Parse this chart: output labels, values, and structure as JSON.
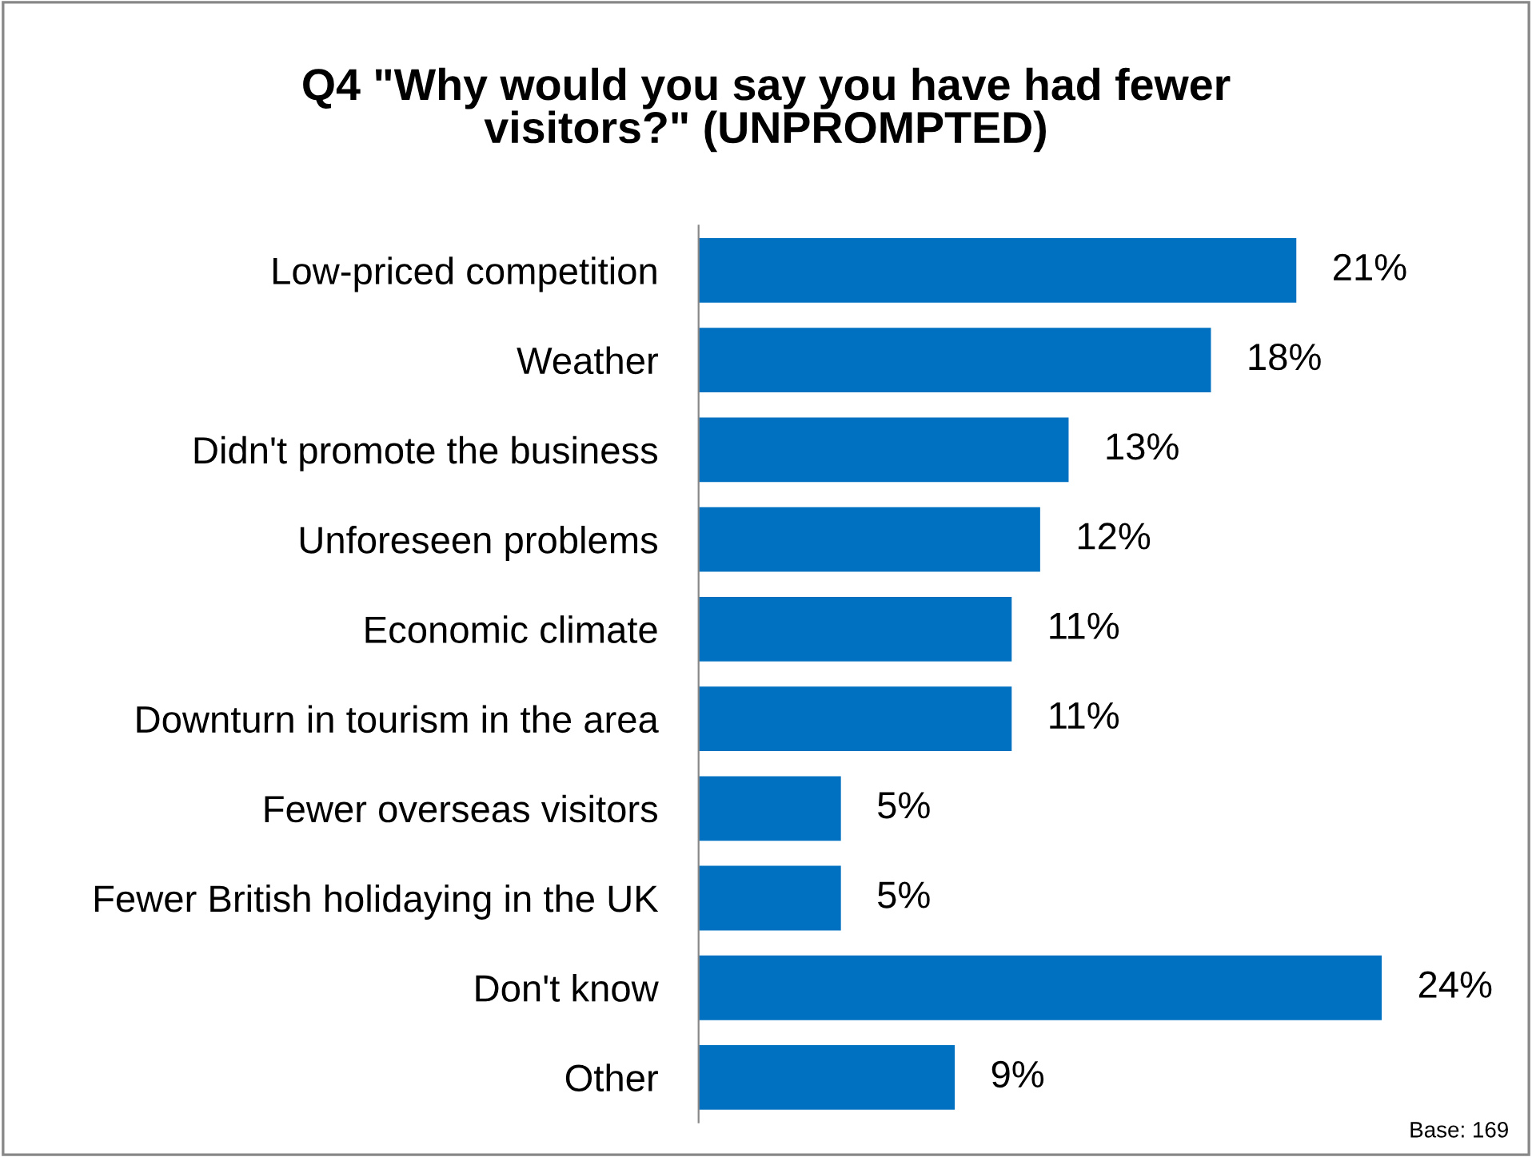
{
  "chart_data": {
    "type": "bar",
    "orientation": "horizontal",
    "title": "Q4 \"Why would you say you have had fewer\nvisitors?\" (UNPROMPTED)",
    "categories": [
      "Low-priced competition",
      "Weather",
      "Didn't promote the business",
      "Unforeseen problems",
      "Economic climate",
      "Downturn in tourism in the area",
      "Fewer overseas visitors",
      "Fewer British holidaying in the UK",
      "Don't know",
      "Other"
    ],
    "values": [
      21,
      18,
      13,
      12,
      11,
      11,
      5,
      5,
      24,
      9
    ],
    "value_labels": [
      "21%",
      "18%",
      "13%",
      "12%",
      "11%",
      "11%",
      "5%",
      "5%",
      "24%",
      "9%"
    ],
    "color": "#0070c0",
    "tick_labels": "y",
    "grid": false,
    "legend": false,
    "annotations": [
      "Base: 169"
    ]
  }
}
